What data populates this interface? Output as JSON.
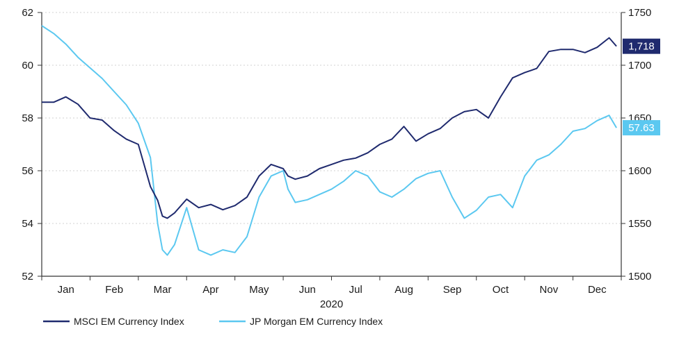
{
  "chart_data": {
    "type": "line",
    "title": "",
    "xlabel": "2020",
    "months": [
      "Jan",
      "Feb",
      "Mar",
      "Apr",
      "May",
      "Jun",
      "Jul",
      "Aug",
      "Sep",
      "Oct",
      "Nov",
      "Dec"
    ],
    "y_left": {
      "range": [
        52,
        62
      ],
      "ticks": [
        "52",
        "54",
        "56",
        "58",
        "60",
        "62"
      ]
    },
    "y_right": {
      "range": [
        1500,
        1750
      ],
      "ticks": [
        "1500",
        "1550",
        "1600",
        "1650",
        "1700",
        "1750"
      ]
    },
    "grid": "horizontal dotted",
    "legend_position": "bottom-left",
    "series": [
      {
        "name": "MSCI EM Currency Index",
        "axis": "right",
        "color": "#1f2a6e",
        "end_label": "1,718",
        "x": [
          0,
          0.25,
          0.5,
          0.75,
          1,
          1.25,
          1.5,
          1.75,
          2,
          2.25,
          2.4,
          2.5,
          2.6,
          2.75,
          3,
          3.25,
          3.5,
          3.75,
          4,
          4.25,
          4.5,
          4.75,
          5,
          5.1,
          5.25,
          5.5,
          5.75,
          6,
          6.25,
          6.5,
          6.75,
          7,
          7.25,
          7.5,
          7.75,
          8,
          8.25,
          8.5,
          8.75,
          9,
          9.25,
          9.5,
          9.75,
          10,
          10.25,
          10.5,
          10.75,
          11,
          11.25,
          11.5,
          11.75,
          11.9
        ],
        "values": [
          1665,
          1665,
          1670,
          1663,
          1650,
          1648,
          1638,
          1630,
          1625,
          1585,
          1572,
          1557,
          1555,
          1560,
          1573,
          1565,
          1568,
          1563,
          1567,
          1575,
          1595,
          1606,
          1602,
          1595,
          1592,
          1595,
          1602,
          1606,
          1610,
          1612,
          1617,
          1625,
          1630,
          1642,
          1628,
          1635,
          1640,
          1650,
          1656,
          1658,
          1650,
          1670,
          1688,
          1693,
          1697,
          1713,
          1715,
          1715,
          1712,
          1717,
          1726,
          1718
        ]
      },
      {
        "name": "JP Morgan EM Currency Index",
        "axis": "left",
        "color": "#5bc8f0",
        "end_label": "57.63",
        "x": [
          0,
          0.25,
          0.5,
          0.75,
          1,
          1.25,
          1.5,
          1.75,
          2,
          2.25,
          2.4,
          2.5,
          2.6,
          2.75,
          3,
          3.25,
          3.5,
          3.75,
          4,
          4.25,
          4.5,
          4.75,
          5,
          5.1,
          5.25,
          5.5,
          5.75,
          6,
          6.25,
          6.5,
          6.75,
          7,
          7.25,
          7.5,
          7.75,
          8,
          8.25,
          8.5,
          8.75,
          9,
          9.25,
          9.5,
          9.75,
          10,
          10.25,
          10.5,
          10.75,
          11,
          11.25,
          11.5,
          11.75,
          11.9
        ],
        "values": [
          61.5,
          61.2,
          60.8,
          60.3,
          59.9,
          59.5,
          59.0,
          58.5,
          57.8,
          56.5,
          54.0,
          53.0,
          52.8,
          53.2,
          54.6,
          53.0,
          52.8,
          53.0,
          52.9,
          53.5,
          55.0,
          55.8,
          56.0,
          55.3,
          54.8,
          54.9,
          55.1,
          55.3,
          55.6,
          56.0,
          55.8,
          55.2,
          55.0,
          55.3,
          55.7,
          55.9,
          56.0,
          55.0,
          54.2,
          54.5,
          55.0,
          55.1,
          54.6,
          55.8,
          56.4,
          56.6,
          57.0,
          57.5,
          57.6,
          57.9,
          58.1,
          57.63
        ]
      }
    ]
  }
}
